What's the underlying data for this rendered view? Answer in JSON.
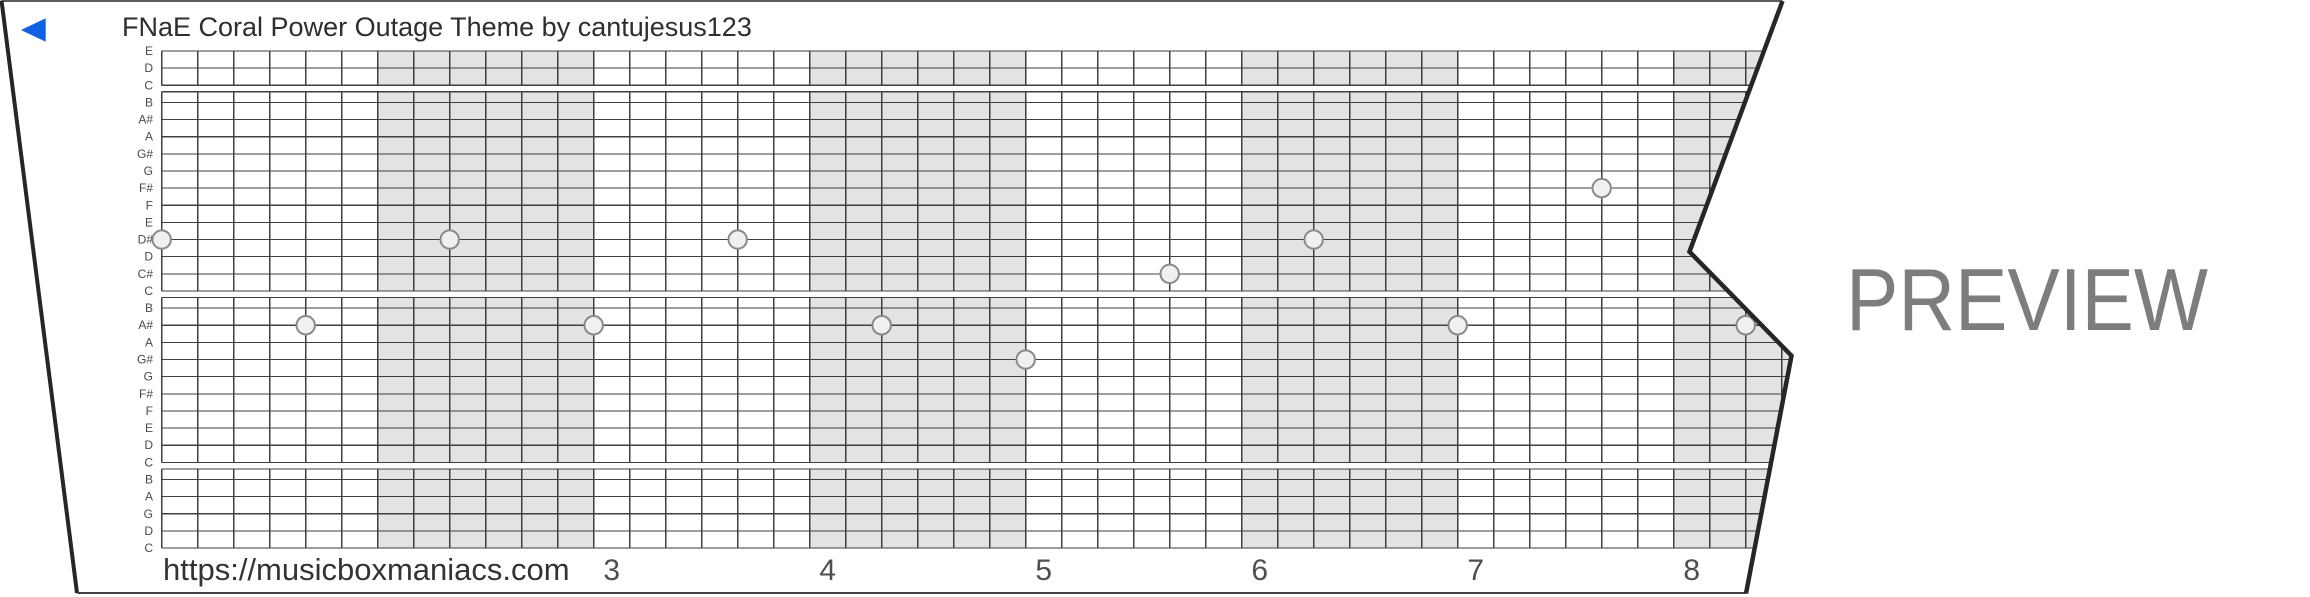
{
  "title": "FNaE Coral Power Outage Theme by cantujesus123",
  "watermark": "PREVIEW",
  "footer": {
    "url": "https://musicboxmaniacs.com"
  },
  "icons": {
    "back_arrow": "left-pointing-triangle"
  },
  "colors": {
    "accent_blue": "#1161e3",
    "paper": "#ffffff",
    "shade": "#e3e3e3",
    "grid_line": "#3f3f3f",
    "edge": "#262626",
    "title_text": "#2e2e2e",
    "url_text": "#333333",
    "number_text": "#4f4f4f",
    "label_text": "#4a4a4a",
    "watermark_gray": "#7d7d7d",
    "dot_fill": "#f0f0f0",
    "dot_stroke": "#8a8a8a"
  },
  "chart_data": {
    "type": "music-box-strip",
    "note_rows_top_to_bottom": [
      "E",
      "D",
      "C",
      "B",
      "A#",
      "A",
      "G#",
      "G",
      "F#",
      "F",
      "E",
      "D#",
      "D",
      "C#",
      "C",
      "B",
      "A#",
      "A",
      "G#",
      "G",
      "F#",
      "F",
      "E",
      "D",
      "C",
      "B",
      "A",
      "G",
      "D",
      "C"
    ],
    "octave_gap_after_row_indices": [
      2,
      14,
      24
    ],
    "measure_numbers": [
      "3",
      "4",
      "5",
      "6",
      "7",
      "8"
    ],
    "columns_per_measure": 6,
    "total_columns": 45,
    "shaded_measure_indices": [
      2,
      4,
      6,
      8
    ],
    "notes": [
      {
        "col": 0,
        "row": 11,
        "pitch": "D#"
      },
      {
        "col": 4,
        "row": 16,
        "pitch": "A#"
      },
      {
        "col": 8,
        "row": 11,
        "pitch": "D#"
      },
      {
        "col": 12,
        "row": 16,
        "pitch": "A#"
      },
      {
        "col": 16,
        "row": 11,
        "pitch": "D#"
      },
      {
        "col": 20,
        "row": 16,
        "pitch": "A#"
      },
      {
        "col": 24,
        "row": 18,
        "pitch": "G#"
      },
      {
        "col": 28,
        "row": 13,
        "pitch": "C#"
      },
      {
        "col": 32,
        "row": 11,
        "pitch": "D#"
      },
      {
        "col": 36,
        "row": 16,
        "pitch": "A#"
      },
      {
        "col": 40,
        "row": 8,
        "pitch": "F#"
      },
      {
        "col": 44,
        "row": 16,
        "pitch": "A#"
      }
    ]
  }
}
